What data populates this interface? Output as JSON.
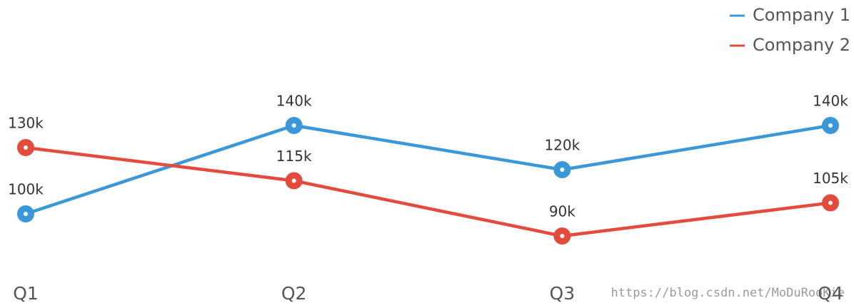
{
  "chart_data": {
    "type": "line",
    "categories": [
      "Q1",
      "Q2",
      "Q3",
      "Q4"
    ],
    "series": [
      {
        "name": "Company 1",
        "color": "#3a98d9",
        "values": [
          100,
          140,
          120,
          140
        ],
        "value_labels": [
          "100k",
          "140k",
          "120k",
          "140k"
        ]
      },
      {
        "name": "Company 2",
        "color": "#e34c3c",
        "values": [
          130,
          115,
          90,
          105
        ],
        "value_labels": [
          "130k",
          "115k",
          "90k",
          "105k"
        ]
      }
    ],
    "legend": "top-right",
    "watermark": "https://blog.csdn.net/MoDuRooKie"
  }
}
